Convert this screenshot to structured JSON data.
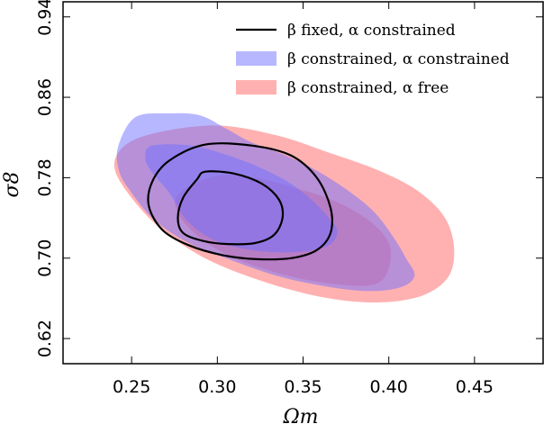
{
  "chart_data": {
    "type": "contour",
    "xlabel": "Ωm",
    "ylabel": "σ8",
    "xlim": [
      0.21,
      0.49
    ],
    "ylim": [
      0.595,
      0.955
    ],
    "xticks": [
      "0.25",
      "0.30",
      "0.35",
      "0.40",
      "0.45"
    ],
    "yticks": [
      "0.62",
      "0.70",
      "0.78",
      "0.86",
      "0.94"
    ],
    "grid": false,
    "legend_position": "top-right",
    "colors": {
      "red": "#ff6464",
      "blue": "#7070ff",
      "black": "#000000"
    },
    "series": [
      {
        "legend_label": "β fixed, α constrained",
        "style": "lines",
        "color": "#000000",
        "contours": [
          {
            "level": "68%",
            "points": [
              [
                0.293,
                0.786
              ],
              [
                0.31,
                0.784
              ],
              [
                0.326,
                0.774
              ],
              [
                0.336,
                0.758
              ],
              [
                0.338,
                0.74
              ],
              [
                0.333,
                0.723
              ],
              [
                0.322,
                0.715
              ],
              [
                0.306,
                0.714
              ],
              [
                0.292,
                0.717
              ],
              [
                0.28,
                0.725
              ],
              [
                0.277,
                0.74
              ],
              [
                0.28,
                0.76
              ],
              [
                0.288,
                0.778
              ]
            ]
          },
          {
            "level": "95%",
            "points": [
              [
                0.293,
                0.813
              ],
              [
                0.32,
                0.812
              ],
              [
                0.343,
                0.802
              ],
              [
                0.358,
                0.78
              ],
              [
                0.366,
                0.75
              ],
              [
                0.366,
                0.725
              ],
              [
                0.358,
                0.708
              ],
              [
                0.343,
                0.7
              ],
              [
                0.323,
                0.699
              ],
              [
                0.303,
                0.703
              ],
              [
                0.283,
                0.713
              ],
              [
                0.268,
                0.728
              ],
              [
                0.26,
                0.752
              ],
              [
                0.262,
                0.776
              ],
              [
                0.272,
                0.797
              ]
            ]
          }
        ]
      },
      {
        "legend_label": "β constrained, α constrained",
        "style": "filled",
        "color": "#7070ff",
        "contours": [
          {
            "level": "68%",
            "points": [
              [
                0.262,
                0.812
              ],
              [
                0.285,
                0.812
              ],
              [
                0.305,
                0.803
              ],
              [
                0.325,
                0.79
              ],
              [
                0.342,
                0.775
              ],
              [
                0.355,
                0.758
              ],
              [
                0.365,
                0.74
              ],
              [
                0.37,
                0.726
              ],
              [
                0.364,
                0.712
              ],
              [
                0.345,
                0.706
              ],
              [
                0.32,
                0.708
              ],
              [
                0.298,
                0.718
              ],
              [
                0.282,
                0.738
              ],
              [
                0.272,
                0.765
              ],
              [
                0.262,
                0.785
              ],
              [
                0.258,
                0.8
              ]
            ]
          },
          {
            "level": "95%",
            "points": [
              [
                0.252,
                0.84
              ],
              [
                0.272,
                0.844
              ],
              [
                0.29,
                0.842
              ],
              [
                0.306,
                0.828
              ],
              [
                0.32,
                0.815
              ],
              [
                0.34,
                0.802
              ],
              [
                0.36,
                0.785
              ],
              [
                0.378,
                0.765
              ],
              [
                0.392,
                0.745
              ],
              [
                0.403,
                0.72
              ],
              [
                0.41,
                0.7
              ],
              [
                0.415,
                0.682
              ],
              [
                0.405,
                0.67
              ],
              [
                0.38,
                0.668
              ],
              [
                0.34,
                0.68
              ],
              [
                0.305,
                0.7
              ],
              [
                0.28,
                0.718
              ],
              [
                0.262,
                0.74
              ],
              [
                0.25,
                0.765
              ],
              [
                0.243,
                0.785
              ],
              [
                0.242,
                0.81
              ]
            ]
          }
        ]
      },
      {
        "legend_label": "β constrained, α free",
        "style": "filled",
        "color": "#ff6464",
        "contours": [
          {
            "level": "68%",
            "points": [
              [
                0.3,
                0.782
              ],
              [
                0.322,
                0.78
              ],
              [
                0.345,
                0.77
              ],
              [
                0.368,
                0.757
              ],
              [
                0.388,
                0.738
              ],
              [
                0.4,
                0.715
              ],
              [
                0.4,
                0.69
              ],
              [
                0.392,
                0.674
              ],
              [
                0.37,
                0.674
              ],
              [
                0.34,
                0.683
              ],
              [
                0.31,
                0.7
              ],
              [
                0.29,
                0.72
              ],
              [
                0.277,
                0.745
              ],
              [
                0.278,
                0.765
              ]
            ]
          },
          {
            "level": "95%",
            "points": [
              [
                0.265,
                0.825
              ],
              [
                0.3,
                0.832
              ],
              [
                0.335,
                0.822
              ],
              [
                0.365,
                0.805
              ],
              [
                0.393,
                0.788
              ],
              [
                0.416,
                0.768
              ],
              [
                0.432,
                0.742
              ],
              [
                0.438,
                0.712
              ],
              [
                0.435,
                0.682
              ],
              [
                0.42,
                0.663
              ],
              [
                0.395,
                0.656
              ],
              [
                0.365,
                0.66
              ],
              [
                0.33,
                0.675
              ],
              [
                0.295,
                0.698
              ],
              [
                0.268,
                0.728
              ],
              [
                0.25,
                0.76
              ],
              [
                0.24,
                0.79
              ],
              [
                0.246,
                0.812
              ]
            ]
          }
        ]
      }
    ]
  }
}
